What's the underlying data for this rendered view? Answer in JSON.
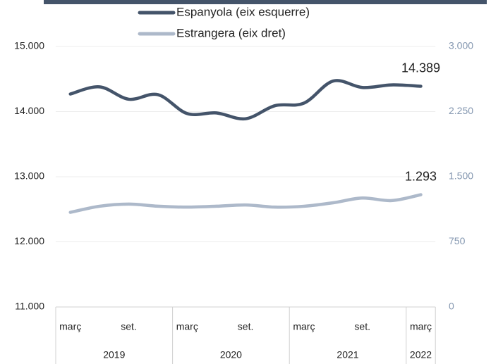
{
  "chart_data": {
    "type": "line",
    "categories": [
      "març",
      null,
      "set.",
      null,
      "març",
      null,
      "set.",
      null,
      "març",
      null,
      "set.",
      null,
      "març"
    ],
    "x_groups": [
      {
        "label": "2019",
        "count": 4
      },
      {
        "label": "2020",
        "count": 4
      },
      {
        "label": "2021",
        "count": 4
      },
      {
        "label": "2022",
        "count": 1
      }
    ],
    "series": [
      {
        "name": "Espanyola (eix esquerre)",
        "color": "#44546a",
        "axis": "y",
        "values": [
          14270,
          14380,
          14190,
          14260,
          13970,
          13980,
          13890,
          14090,
          14130,
          14470,
          14370,
          14410,
          14389
        ],
        "value_labels": [
          null,
          null,
          null,
          null,
          null,
          null,
          null,
          null,
          null,
          null,
          null,
          null,
          "14.389"
        ]
      },
      {
        "name": "Estrangera (eix dret)",
        "color": "#adb9ca",
        "axis": "y2",
        "values": [
          1090,
          1160,
          1185,
          1160,
          1150,
          1160,
          1175,
          1150,
          1160,
          1200,
          1255,
          1225,
          1293
        ],
        "value_labels": [
          null,
          null,
          null,
          null,
          null,
          null,
          null,
          null,
          null,
          null,
          null,
          null,
          "1.293"
        ]
      }
    ],
    "ylim": [
      11000,
      15000
    ],
    "yticks": [
      {
        "value": 11000,
        "label": "11.000"
      },
      {
        "value": 12000,
        "label": "12.000"
      },
      {
        "value": 13000,
        "label": "13.000"
      },
      {
        "value": 14000,
        "label": "14.000"
      },
      {
        "value": 15000,
        "label": "15.000"
      }
    ],
    "y2lim": [
      0,
      3000
    ],
    "y2ticks": [
      0,
      750,
      {
        "value": 1500,
        "label": "1.500"
      },
      {
        "value": 2250,
        "label": "2.250"
      },
      {
        "value": 3000,
        "label": "3.000"
      }
    ],
    "grid": true,
    "legend": "top"
  }
}
